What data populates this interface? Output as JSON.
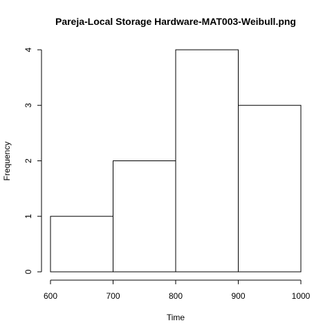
{
  "chart_data": {
    "type": "bar",
    "title": "Pareja-Local Storage Hardware-MAT003-Weibull.png",
    "xlabel": "Time",
    "ylabel": "Frequency",
    "bins": [
      {
        "start": 600,
        "end": 700,
        "count": 1
      },
      {
        "start": 700,
        "end": 800,
        "count": 2
      },
      {
        "start": 800,
        "end": 900,
        "count": 4
      },
      {
        "start": 900,
        "end": 1000,
        "count": 3
      }
    ],
    "xlim": [
      600,
      1000
    ],
    "ylim": [
      0,
      4
    ],
    "x_ticks": [
      600,
      700,
      800,
      900,
      1000
    ],
    "y_ticks": [
      0,
      1,
      2,
      3,
      4
    ],
    "grid": false,
    "colors": {
      "bar_fill": "#ffffff",
      "bar_stroke": "#000000",
      "axis": "#000000"
    }
  }
}
